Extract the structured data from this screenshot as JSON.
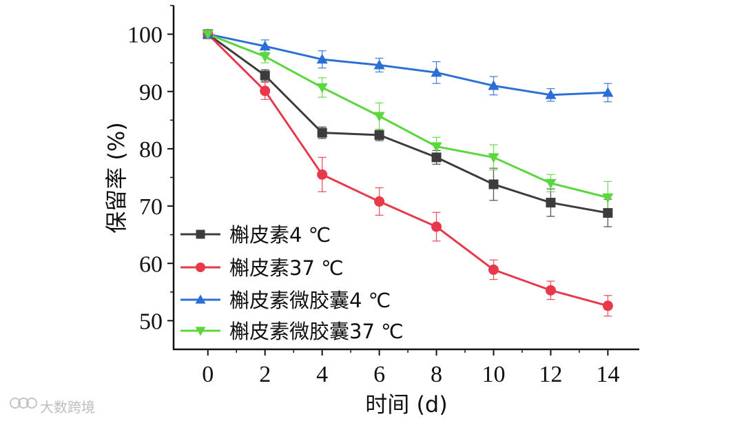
{
  "chart_data": {
    "type": "line",
    "title": "",
    "xlabel": "时间 (d)",
    "ylabel": "保留率 (%)",
    "x": [
      0,
      2,
      4,
      6,
      8,
      10,
      12,
      14
    ],
    "xlim": [
      -1.2,
      15.1
    ],
    "ylim": [
      45,
      105
    ],
    "xticks": [
      0,
      2,
      4,
      6,
      8,
      10,
      12,
      14
    ],
    "yticks": [
      50,
      60,
      70,
      80,
      90,
      100
    ],
    "legend_position": "bottom-left",
    "grid": false,
    "series": [
      {
        "name": "槲皮素4 ℃",
        "color": "#3c3c3c",
        "marker": "square",
        "values": [
          100,
          92.8,
          82.8,
          82.4,
          78.5,
          73.8,
          70.6,
          68.8
        ],
        "errors": [
          0.4,
          1.0,
          1.0,
          1.0,
          1.2,
          2.8,
          2.4,
          2.4
        ]
      },
      {
        "name": "槲皮素37 ℃",
        "color": "#e8394a",
        "marker": "circle",
        "values": [
          100,
          90.1,
          75.5,
          70.8,
          66.4,
          58.9,
          55.3,
          52.6
        ],
        "errors": [
          0.4,
          1.5,
          3.0,
          2.4,
          2.5,
          1.7,
          1.6,
          1.8
        ]
      },
      {
        "name": "槲皮素微胶囊4 ℃",
        "color": "#2b6fd6",
        "marker": "triangle-up",
        "values": [
          100,
          97.9,
          95.6,
          94.6,
          93.3,
          91.0,
          89.4,
          89.8
        ],
        "errors": [
          0.4,
          1.1,
          1.5,
          1.2,
          1.9,
          1.6,
          1.1,
          1.6
        ]
      },
      {
        "name": "槲皮素微胶囊37 ℃",
        "color": "#5bd63e",
        "marker": "triangle-down",
        "values": [
          100,
          96.1,
          90.7,
          85.7,
          80.4,
          78.5,
          74.0,
          71.5
        ],
        "errors": [
          0.4,
          1.1,
          1.7,
          2.3,
          1.6,
          2.2,
          1.5,
          2.8
        ]
      }
    ]
  },
  "watermark": {
    "icon_name": "logo-icon",
    "text": "大数跨境"
  }
}
